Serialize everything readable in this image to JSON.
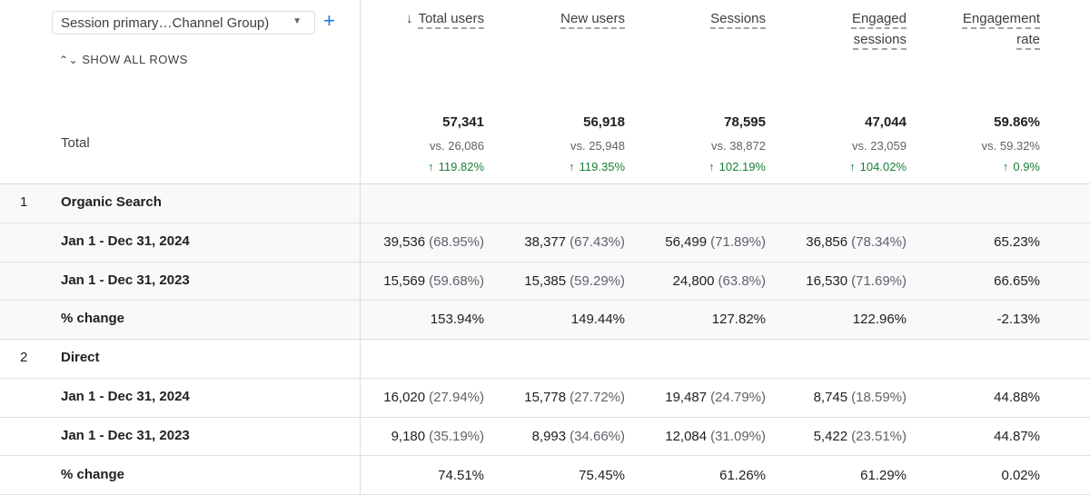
{
  "dimension_selector": "Session primary…Channel Group)",
  "show_all_rows": "SHOW ALL ROWS",
  "columns": [
    "Total users",
    "New users",
    "Sessions",
    "Engaged sessions",
    "Engagement rate"
  ],
  "total": {
    "label": "Total",
    "cells": [
      {
        "value": "57,341",
        "compare": "vs. 26,086",
        "change": "119.82%"
      },
      {
        "value": "56,918",
        "compare": "vs. 25,948",
        "change": "119.35%"
      },
      {
        "value": "78,595",
        "compare": "vs. 38,872",
        "change": "102.19%"
      },
      {
        "value": "47,044",
        "compare": "vs. 23,059",
        "change": "104.02%"
      },
      {
        "value": "59.86%",
        "compare": "vs. 59.32%",
        "change": "0.9%"
      }
    ]
  },
  "groups": [
    {
      "index": "1",
      "name": "Organic Search",
      "rows": [
        {
          "label": "Jan 1 - Dec 31, 2024",
          "cells": [
            {
              "value": "39,536",
              "share": "(68.95%)"
            },
            {
              "value": "38,377",
              "share": "(67.43%)"
            },
            {
              "value": "56,499",
              "share": "(71.89%)"
            },
            {
              "value": "36,856",
              "share": "(78.34%)"
            },
            {
              "value": "65.23%"
            }
          ]
        },
        {
          "label": "Jan 1 - Dec 31, 2023",
          "cells": [
            {
              "value": "15,569",
              "share": "(59.68%)"
            },
            {
              "value": "15,385",
              "share": "(59.29%)"
            },
            {
              "value": "24,800",
              "share": "(63.8%)"
            },
            {
              "value": "16,530",
              "share": "(71.69%)"
            },
            {
              "value": "66.65%"
            }
          ]
        },
        {
          "label": "% change",
          "cells": [
            {
              "value": "153.94%"
            },
            {
              "value": "149.44%"
            },
            {
              "value": "127.82%"
            },
            {
              "value": "122.96%"
            },
            {
              "value": "-2.13%"
            }
          ]
        }
      ]
    },
    {
      "index": "2",
      "name": "Direct",
      "rows": [
        {
          "label": "Jan 1 - Dec 31, 2024",
          "cells": [
            {
              "value": "16,020",
              "share": "(27.94%)"
            },
            {
              "value": "15,778",
              "share": "(27.72%)"
            },
            {
              "value": "19,487",
              "share": "(24.79%)"
            },
            {
              "value": "8,745",
              "share": "(18.59%)"
            },
            {
              "value": "44.88%"
            }
          ]
        },
        {
          "label": "Jan 1 - Dec 31, 2023",
          "cells": [
            {
              "value": "9,180",
              "share": "(35.19%)"
            },
            {
              "value": "8,993",
              "share": "(34.66%)"
            },
            {
              "value": "12,084",
              "share": "(31.09%)"
            },
            {
              "value": "5,422",
              "share": "(23.51%)"
            },
            {
              "value": "44.87%"
            }
          ]
        },
        {
          "label": "% change",
          "cells": [
            {
              "value": "74.51%"
            },
            {
              "value": "75.45%"
            },
            {
              "value": "61.26%"
            },
            {
              "value": "61.29%"
            },
            {
              "value": "0.02%"
            }
          ]
        }
      ]
    }
  ]
}
